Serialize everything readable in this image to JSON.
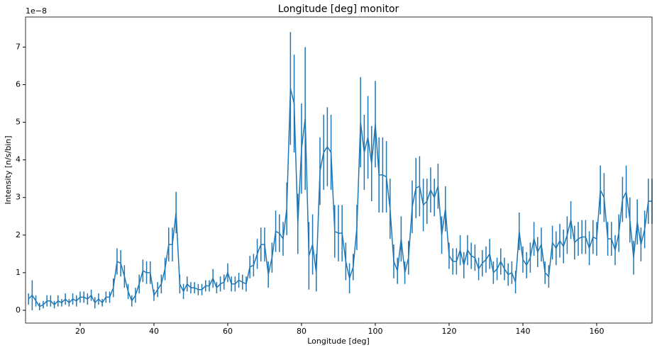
{
  "chart_data": {
    "type": "errorbar-line",
    "title": "Longitude [deg] monitor",
    "x_label": "Longitude [deg]",
    "y_label": "Intensity [n/s/bin]",
    "y_offset_text": "1e−8",
    "x": [
      6,
      7,
      8,
      9,
      10,
      11,
      12,
      13,
      14,
      15,
      16,
      17,
      18,
      19,
      20,
      21,
      22,
      23,
      24,
      25,
      26,
      27,
      28,
      29,
      30,
      31,
      32,
      33,
      34,
      35,
      36,
      37,
      38,
      39,
      40,
      41,
      42,
      43,
      44,
      45,
      46,
      47,
      48,
      49,
      50,
      51,
      52,
      53,
      54,
      55,
      56,
      57,
      58,
      59,
      60,
      61,
      62,
      63,
      64,
      65,
      66,
      67,
      68,
      69,
      70,
      71,
      72,
      73,
      74,
      75,
      76,
      77,
      78,
      79,
      80,
      81,
      82,
      83,
      84,
      85,
      86,
      87,
      88,
      89,
      90,
      91,
      92,
      93,
      94,
      95,
      96,
      97,
      98,
      99,
      100,
      101,
      102,
      103,
      104,
      105,
      106,
      107,
      108,
      109,
      110,
      111,
      112,
      113,
      114,
      115,
      116,
      117,
      118,
      119,
      120,
      121,
      122,
      123,
      124,
      125,
      126,
      127,
      128,
      129,
      130,
      131,
      132,
      133,
      134,
      135,
      136,
      137,
      138,
      139,
      140,
      141,
      142,
      143,
      144,
      145,
      146,
      147,
      148,
      149,
      150,
      151,
      152,
      153,
      154,
      155,
      156,
      157,
      158,
      159,
      160,
      161,
      162,
      163,
      164,
      165,
      166,
      167,
      168,
      169,
      170,
      171,
      172,
      173,
      174,
      175
    ],
    "series": [
      {
        "color": "#1f77b4",
        "values": [
          0.3,
          0.4,
          0.25,
          0.1,
          0.15,
          0.25,
          0.25,
          0.15,
          0.25,
          0.2,
          0.3,
          0.2,
          0.3,
          0.25,
          0.35,
          0.35,
          0.3,
          0.4,
          0.2,
          0.3,
          0.2,
          0.35,
          0.35,
          0.6,
          1.3,
          1.25,
          0.9,
          0.5,
          0.25,
          0.4,
          0.7,
          1.05,
          1.0,
          1.0,
          0.4,
          0.55,
          0.7,
          1.1,
          1.75,
          1.75,
          2.6,
          0.7,
          0.5,
          0.7,
          0.6,
          0.6,
          0.55,
          0.55,
          0.65,
          0.65,
          0.85,
          0.6,
          0.7,
          0.75,
          1.0,
          0.7,
          0.7,
          0.8,
          0.75,
          0.7,
          1.15,
          1.2,
          1.5,
          1.75,
          1.75,
          0.95,
          1.4,
          2.1,
          2.05,
          1.9,
          2.7,
          5.9,
          5.5,
          2.3,
          4.3,
          5.1,
          1.45,
          1.75,
          1.0,
          3.7,
          4.2,
          4.35,
          4.2,
          2.1,
          2.05,
          2.05,
          1.3,
          0.85,
          1.15,
          2.2,
          5.0,
          4.2,
          4.6,
          3.9,
          4.95,
          3.6,
          3.6,
          3.55,
          2.7,
          1.3,
          1.05,
          1.9,
          1.0,
          1.4,
          2.75,
          3.25,
          3.3,
          2.8,
          2.9,
          3.2,
          3.0,
          3.3,
          2.0,
          2.7,
          1.45,
          1.3,
          1.3,
          1.6,
          1.2,
          1.6,
          1.45,
          1.4,
          1.1,
          1.25,
          1.35,
          1.5,
          1.0,
          1.1,
          1.3,
          1.1,
          0.95,
          1.0,
          0.75,
          2.1,
          1.35,
          1.2,
          1.4,
          1.9,
          1.55,
          1.75,
          1.0,
          0.9,
          1.8,
          1.65,
          1.85,
          1.7,
          2.0,
          2.4,
          1.8,
          1.9,
          1.95,
          1.95,
          1.65,
          1.95,
          1.9,
          3.2,
          3.0,
          1.9,
          1.9,
          1.6,
          2.05,
          2.95,
          3.15,
          2.4,
          1.4,
          2.35,
          1.75,
          2.15,
          2.9,
          2.9
        ],
        "errors": [
          0.15,
          0.4,
          0.15,
          0.1,
          0.1,
          0.15,
          0.15,
          0.1,
          0.15,
          0.1,
          0.15,
          0.1,
          0.15,
          0.15,
          0.15,
          0.15,
          0.15,
          0.15,
          0.15,
          0.15,
          0.1,
          0.15,
          0.15,
          0.25,
          0.35,
          0.35,
          0.3,
          0.2,
          0.15,
          0.2,
          0.25,
          0.3,
          0.3,
          0.3,
          0.15,
          0.2,
          0.25,
          0.3,
          0.45,
          0.45,
          0.55,
          0.25,
          0.2,
          0.2,
          0.15,
          0.15,
          0.15,
          0.15,
          0.15,
          0.15,
          0.25,
          0.15,
          0.2,
          0.2,
          0.25,
          0.2,
          0.2,
          0.2,
          0.2,
          0.2,
          0.3,
          0.3,
          0.4,
          0.45,
          0.45,
          0.35,
          0.4,
          0.55,
          0.5,
          0.45,
          0.7,
          1.5,
          1.3,
          0.8,
          1.2,
          1.9,
          0.9,
          0.8,
          0.5,
          0.9,
          1.0,
          1.05,
          1.0,
          0.7,
          0.75,
          0.75,
          0.5,
          0.4,
          0.35,
          0.6,
          1.2,
          1.0,
          1.1,
          1.0,
          1.15,
          1.0,
          1.0,
          0.95,
          0.8,
          0.45,
          0.35,
          0.6,
          0.3,
          0.45,
          0.7,
          0.8,
          0.8,
          0.7,
          0.6,
          0.6,
          0.5,
          0.6,
          0.5,
          0.6,
          0.35,
          0.35,
          0.35,
          0.4,
          0.35,
          0.4,
          0.35,
          0.35,
          0.3,
          0.35,
          0.35,
          0.4,
          0.3,
          0.3,
          0.35,
          0.3,
          0.3,
          0.3,
          0.3,
          0.5,
          0.35,
          0.35,
          0.4,
          0.45,
          0.4,
          0.45,
          0.3,
          0.3,
          0.45,
          0.45,
          0.45,
          0.45,
          0.5,
          0.5,
          0.45,
          0.45,
          0.45,
          0.45,
          0.45,
          0.45,
          0.45,
          0.65,
          0.65,
          0.45,
          0.45,
          0.4,
          0.5,
          0.6,
          0.7,
          0.6,
          0.45,
          0.6,
          0.45,
          0.5,
          0.6,
          0.6
        ]
      }
    ],
    "xlim": [
      5.2,
      175
    ],
    "ylim": [
      -0.34,
      7.8
    ],
    "xticks": [
      20,
      40,
      60,
      80,
      100,
      120,
      140,
      160
    ],
    "yticks": [
      0,
      1,
      2,
      3,
      4,
      5,
      6,
      7
    ]
  }
}
